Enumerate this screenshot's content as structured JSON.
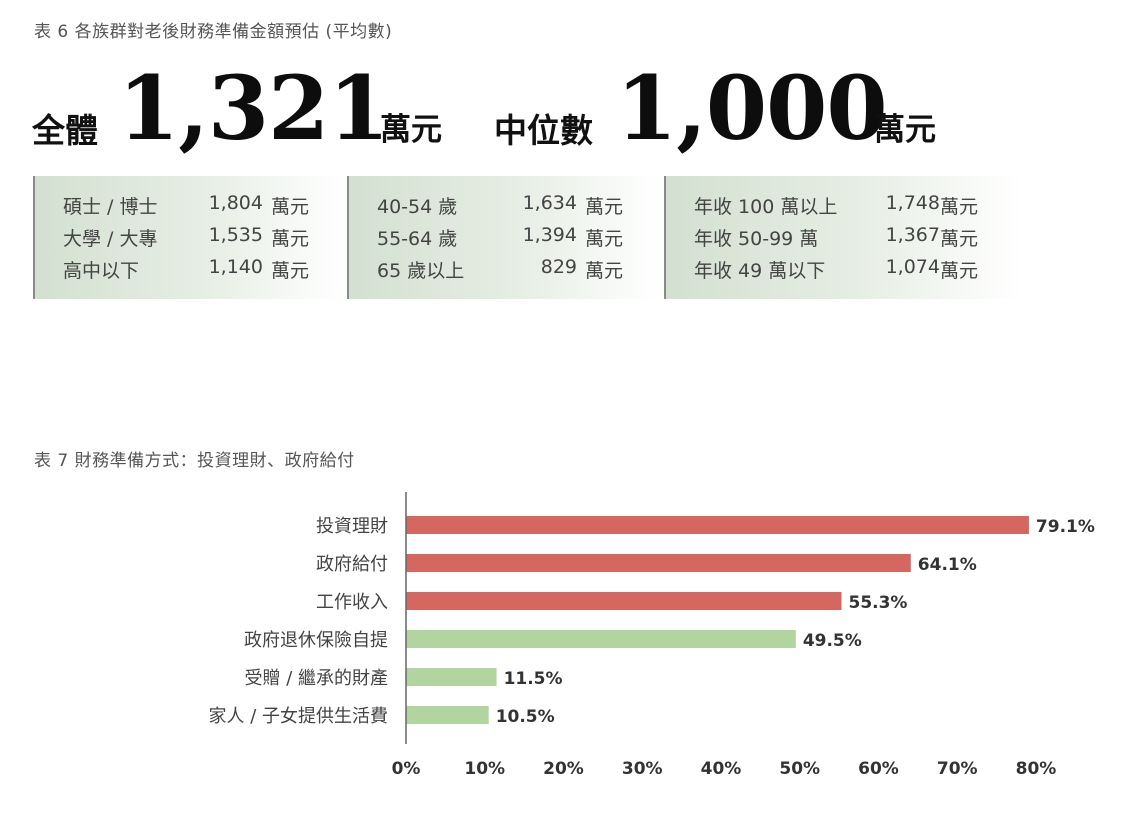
{
  "table6": {
    "caption": "表 6  各族群對老後財務準備金額預估 (平均數)",
    "overall_label": "全體",
    "overall_value": "1,321",
    "overall_unit": "萬元",
    "median_label": "中位數",
    "median_value": "1,000",
    "median_unit": "萬元",
    "panels": [
      {
        "rows": [
          {
            "label": "碩士 / 博士",
            "value": "1,804",
            "unit": "萬元"
          },
          {
            "label": "大學 / 大專",
            "value": "1,535",
            "unit": "萬元"
          },
          {
            "label": "高中以下",
            "value": "1,140",
            "unit": "萬元"
          }
        ]
      },
      {
        "rows": [
          {
            "label": "40-54 歲",
            "value": "1,634",
            "unit": "萬元"
          },
          {
            "label": "55-64 歲",
            "value": "1,394",
            "unit": "萬元"
          },
          {
            "label": "65 歲以上",
            "value": "829",
            "unit": "萬元"
          }
        ]
      },
      {
        "rows": [
          {
            "label": "年收 100 萬以上",
            "value": "1,748",
            "unit": "萬元"
          },
          {
            "label": "年收 50-99 萬",
            "value": "1,367",
            "unit": "萬元"
          },
          {
            "label": "年收 49 萬以下",
            "value": "1,074",
            "unit": "萬元"
          }
        ]
      }
    ]
  },
  "table7": {
    "caption": "表 7  財務準備方式：投資理財、政府給付"
  },
  "chart_data": {
    "type": "bar",
    "orientation": "horizontal",
    "categories": [
      "投資理財",
      "政府給付",
      "工作收入",
      "政府退休保險自提",
      "受贈 / 繼承的財產",
      "家人 / 子女提供生活費"
    ],
    "values": [
      79.1,
      64.1,
      55.3,
      49.5,
      11.5,
      10.5
    ],
    "value_labels": [
      "79.1%",
      "64.1%",
      "55.3%",
      "49.5%",
      "11.5%",
      "10.5%"
    ],
    "bar_colors": [
      "#d4675f",
      "#d4675f",
      "#d4675f",
      "#b2d49e",
      "#b2d49e",
      "#b2d49e"
    ],
    "xlim": [
      0,
      80
    ],
    "xticks": [
      0,
      10,
      20,
      30,
      40,
      50,
      60,
      70,
      80
    ],
    "xtick_labels": [
      "0%",
      "10%",
      "20%",
      "30%",
      "40%",
      "50%",
      "60%",
      "70%",
      "80%"
    ],
    "grid": false,
    "legend": "none"
  }
}
